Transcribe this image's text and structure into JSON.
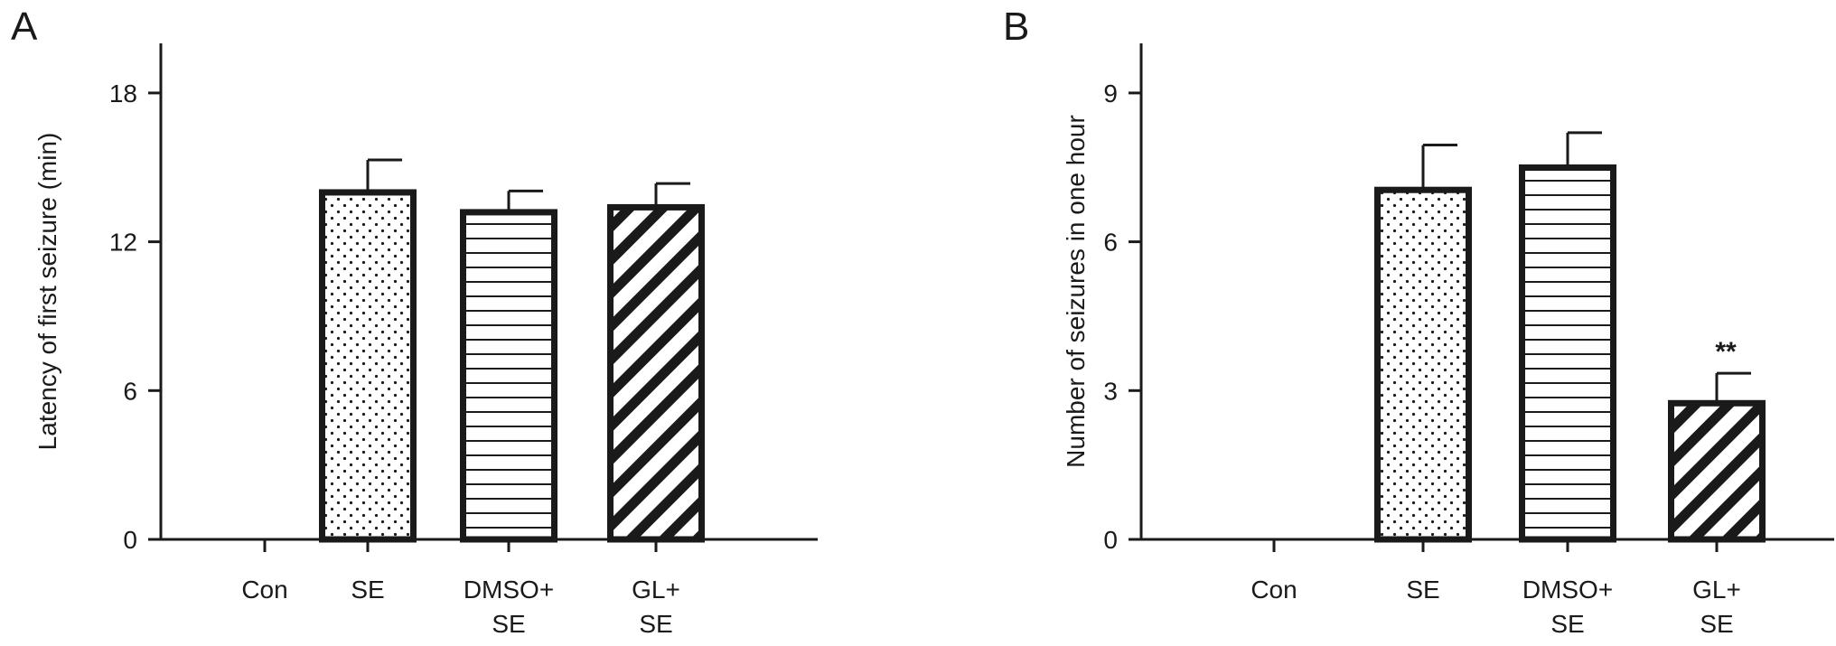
{
  "chart_data": [
    {
      "panel": "A",
      "type": "bar",
      "ylabel": "Latency of first seizure (min)",
      "ylim": [
        0,
        20
      ],
      "yticks": [
        0,
        6,
        12,
        18
      ],
      "categories": [
        [
          "Con"
        ],
        [
          "SE"
        ],
        [
          "DMSO+",
          "SE"
        ],
        [
          "GL+",
          "SE"
        ]
      ],
      "values": [
        0,
        14.1,
        13.3,
        13.5
      ],
      "errors": [
        0,
        1.2,
        0.75,
        0.85
      ],
      "patterns": [
        "none",
        "dots",
        "hlines",
        "diagonal"
      ],
      "annotations": [
        "",
        "",
        "",
        ""
      ]
    },
    {
      "panel": "B",
      "type": "bar",
      "ylabel": "Number of seizures in one hour",
      "ylim": [
        0,
        10
      ],
      "yticks": [
        0,
        3,
        6,
        9
      ],
      "categories": [
        [
          "Con"
        ],
        [
          "SE"
        ],
        [
          "DMSO+",
          "SE"
        ],
        [
          "GL+",
          "SE"
        ]
      ],
      "values": [
        0,
        7.1,
        7.55,
        2.8
      ],
      "errors": [
        0,
        0.85,
        0.65,
        0.55
      ],
      "patterns": [
        "none",
        "dots",
        "hlines",
        "diagonal"
      ],
      "annotations": [
        "",
        "",
        "",
        "**"
      ]
    }
  ],
  "colors": {
    "ink": "#1a1a1a",
    "bar_fill": "#ffffff"
  }
}
